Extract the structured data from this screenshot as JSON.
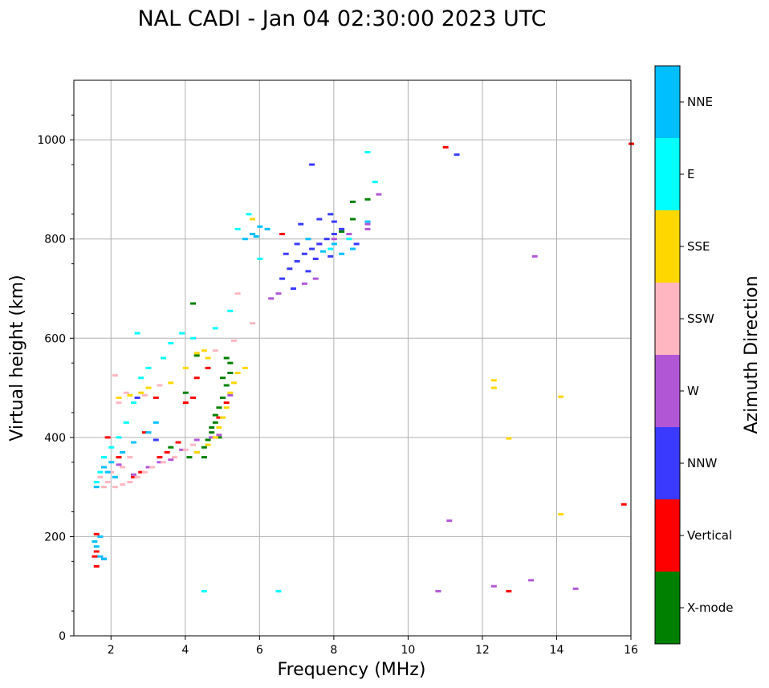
{
  "chart_data": {
    "type": "scatter",
    "title": "NAL CADI - Jan 04 02:30:00 2023 UTC",
    "xlabel": "Frequency (MHz)",
    "ylabel": "Virtual height (km)",
    "xlim": [
      1,
      16
    ],
    "ylim": [
      0,
      1120
    ],
    "xticks": [
      "2",
      "4",
      "6",
      "8",
      "10",
      "12",
      "14",
      "16"
    ],
    "yticks": [
      "0",
      "200",
      "400",
      "600",
      "800",
      "1000"
    ],
    "grid": true,
    "colorbar": {
      "label": "Azimuth Direction",
      "categories": [
        {
          "name": "X-mode",
          "color": "#008000"
        },
        {
          "name": "Vertical",
          "color": "#ff0000"
        },
        {
          "name": "NNW",
          "color": "#3a3aff"
        },
        {
          "name": "W",
          "color": "#b157d6"
        },
        {
          "name": "SSW",
          "color": "#ffb6c1"
        },
        {
          "name": "SSE",
          "color": "#ffd700"
        },
        {
          "name": "E",
          "color": "#00ffff"
        },
        {
          "name": "NNE",
          "color": "#00bfff"
        }
      ]
    },
    "series": [
      {
        "name": "X-mode",
        "points": [
          [
            4.1,
            360
          ],
          [
            4.3,
            370
          ],
          [
            4.5,
            380
          ],
          [
            4.6,
            395
          ],
          [
            4.7,
            410
          ],
          [
            4.8,
            430
          ],
          [
            4.9,
            460
          ],
          [
            5.0,
            480
          ],
          [
            5.1,
            505
          ],
          [
            5.2,
            530
          ],
          [
            5.2,
            550
          ],
          [
            4.9,
            400
          ],
          [
            4.3,
            565
          ],
          [
            4.7,
            420
          ],
          [
            4.8,
            445
          ],
          [
            5.0,
            520
          ],
          [
            4.5,
            360
          ],
          [
            4.0,
            490
          ],
          [
            3.6,
            380
          ],
          [
            5.1,
            560
          ],
          [
            8.5,
            875
          ],
          [
            8.9,
            880
          ],
          [
            8.5,
            840
          ],
          [
            4.2,
            670
          ],
          [
            8.2,
            815
          ]
        ]
      },
      {
        "name": "Vertical",
        "points": [
          [
            1.6,
            205
          ],
          [
            1.6,
            170
          ],
          [
            1.6,
            140
          ],
          [
            1.55,
            160
          ],
          [
            2.6,
            320
          ],
          [
            2.8,
            330
          ],
          [
            3.3,
            360
          ],
          [
            3.5,
            370
          ],
          [
            3.8,
            390
          ],
          [
            4.0,
            470
          ],
          [
            4.3,
            520
          ],
          [
            4.6,
            540
          ],
          [
            1.9,
            400
          ],
          [
            2.2,
            360
          ],
          [
            4.9,
            440
          ],
          [
            5.1,
            470
          ],
          [
            2.9,
            410
          ],
          [
            11.0,
            985
          ],
          [
            12.7,
            90
          ],
          [
            15.8,
            265
          ],
          [
            16.0,
            992
          ],
          [
            4.2,
            480
          ],
          [
            3.2,
            480
          ],
          [
            6.6,
            810
          ],
          [
            7.6,
            790
          ]
        ]
      },
      {
        "name": "NNW",
        "points": [
          [
            6.6,
            720
          ],
          [
            6.8,
            740
          ],
          [
            7.0,
            755
          ],
          [
            7.2,
            770
          ],
          [
            7.4,
            780
          ],
          [
            7.6,
            790
          ],
          [
            7.8,
            800
          ],
          [
            8.0,
            810
          ],
          [
            8.2,
            820
          ],
          [
            7.9,
            850
          ],
          [
            7.6,
            840
          ],
          [
            7.9,
            765
          ],
          [
            7.3,
            735
          ],
          [
            6.9,
            700
          ],
          [
            7.1,
            830
          ],
          [
            8.0,
            835
          ],
          [
            7.4,
            950
          ],
          [
            11.3,
            970
          ],
          [
            6.7,
            770
          ],
          [
            7.5,
            760
          ],
          [
            7.0,
            790
          ],
          [
            2.7,
            480
          ],
          [
            3.2,
            395
          ],
          [
            1.8,
            155
          ],
          [
            8.6,
            790
          ]
        ]
      },
      {
        "name": "W",
        "points": [
          [
            6.3,
            680
          ],
          [
            6.5,
            690
          ],
          [
            7.2,
            710
          ],
          [
            7.5,
            720
          ],
          [
            8.0,
            800
          ],
          [
            8.4,
            810
          ],
          [
            8.9,
            820
          ],
          [
            9.2,
            890
          ],
          [
            10.8,
            90
          ],
          [
            11.1,
            232
          ],
          [
            12.3,
            100
          ],
          [
            13.3,
            112
          ],
          [
            13.4,
            765
          ],
          [
            14.5,
            95
          ],
          [
            3.0,
            340
          ],
          [
            3.3,
            350
          ],
          [
            3.6,
            355
          ],
          [
            4.3,
            395
          ],
          [
            4.7,
            400
          ],
          [
            2.6,
            325
          ],
          [
            2.2,
            345
          ],
          [
            5.2,
            485
          ],
          [
            4.9,
            405
          ],
          [
            3.9,
            375
          ],
          [
            8.9,
            830
          ]
        ]
      },
      {
        "name": "SSW",
        "points": [
          [
            1.8,
            300
          ],
          [
            1.9,
            310
          ],
          [
            2.1,
            300
          ],
          [
            2.3,
            305
          ],
          [
            2.5,
            310
          ],
          [
            2.7,
            320
          ],
          [
            2.9,
            330
          ],
          [
            3.1,
            340
          ],
          [
            3.4,
            350
          ],
          [
            3.7,
            360
          ],
          [
            4.0,
            375
          ],
          [
            4.2,
            385
          ],
          [
            1.7,
            320
          ],
          [
            2.0,
            330
          ],
          [
            2.3,
            340
          ],
          [
            2.5,
            360
          ],
          [
            2.1,
            525
          ],
          [
            2.4,
            490
          ],
          [
            2.2,
            470
          ],
          [
            5.4,
            690
          ],
          [
            5.8,
            630
          ],
          [
            5.3,
            595
          ],
          [
            4.8,
            575
          ],
          [
            2.9,
            485
          ],
          [
            3.3,
            505
          ]
        ]
      },
      {
        "name": "SSE",
        "points": [
          [
            4.3,
            370
          ],
          [
            4.6,
            385
          ],
          [
            4.8,
            400
          ],
          [
            4.9,
            420
          ],
          [
            5.0,
            440
          ],
          [
            5.1,
            460
          ],
          [
            5.2,
            490
          ],
          [
            5.3,
            510
          ],
          [
            5.4,
            530
          ],
          [
            4.3,
            570
          ],
          [
            4.5,
            575
          ],
          [
            4.6,
            560
          ],
          [
            5.6,
            540
          ],
          [
            3.0,
            500
          ],
          [
            2.5,
            485
          ],
          [
            2.2,
            480
          ],
          [
            2.8,
            490
          ],
          [
            3.6,
            510
          ],
          [
            4.0,
            540
          ],
          [
            5.8,
            840
          ],
          [
            12.3,
            515
          ],
          [
            12.3,
            500
          ],
          [
            12.7,
            398
          ],
          [
            14.1,
            482
          ],
          [
            14.1,
            245
          ]
        ]
      },
      {
        "name": "E",
        "points": [
          [
            1.6,
            310
          ],
          [
            1.7,
            330
          ],
          [
            1.8,
            360
          ],
          [
            2.0,
            380
          ],
          [
            2.2,
            400
          ],
          [
            2.4,
            430
          ],
          [
            2.6,
            470
          ],
          [
            2.8,
            520
          ],
          [
            3.0,
            540
          ],
          [
            3.4,
            560
          ],
          [
            3.6,
            590
          ],
          [
            4.5,
            90
          ],
          [
            6.5,
            90
          ],
          [
            5.4,
            820
          ],
          [
            5.7,
            850
          ],
          [
            6.0,
            760
          ],
          [
            7.9,
            780
          ],
          [
            8.4,
            800
          ],
          [
            8.9,
            975
          ],
          [
            9.1,
            915
          ],
          [
            4.8,
            620
          ],
          [
            3.9,
            610
          ],
          [
            4.2,
            600
          ],
          [
            5.2,
            655
          ],
          [
            2.7,
            610
          ]
        ]
      },
      {
        "name": "NNE",
        "points": [
          [
            1.6,
            180
          ],
          [
            1.7,
            160
          ],
          [
            1.8,
            155
          ],
          [
            1.55,
            190
          ],
          [
            1.7,
            200
          ],
          [
            1.9,
            330
          ],
          [
            2.0,
            350
          ],
          [
            2.3,
            370
          ],
          [
            2.6,
            390
          ],
          [
            3.0,
            410
          ],
          [
            3.2,
            430
          ],
          [
            5.6,
            800
          ],
          [
            5.8,
            810
          ],
          [
            6.0,
            825
          ],
          [
            7.7,
            775
          ],
          [
            8.2,
            770
          ],
          [
            8.5,
            780
          ],
          [
            8.9,
            835
          ],
          [
            1.6,
            300
          ],
          [
            1.8,
            340
          ],
          [
            2.1,
            320
          ],
          [
            5.9,
            805
          ],
          [
            7.3,
            800
          ],
          [
            8.0,
            790
          ],
          [
            6.2,
            820
          ]
        ]
      }
    ]
  }
}
